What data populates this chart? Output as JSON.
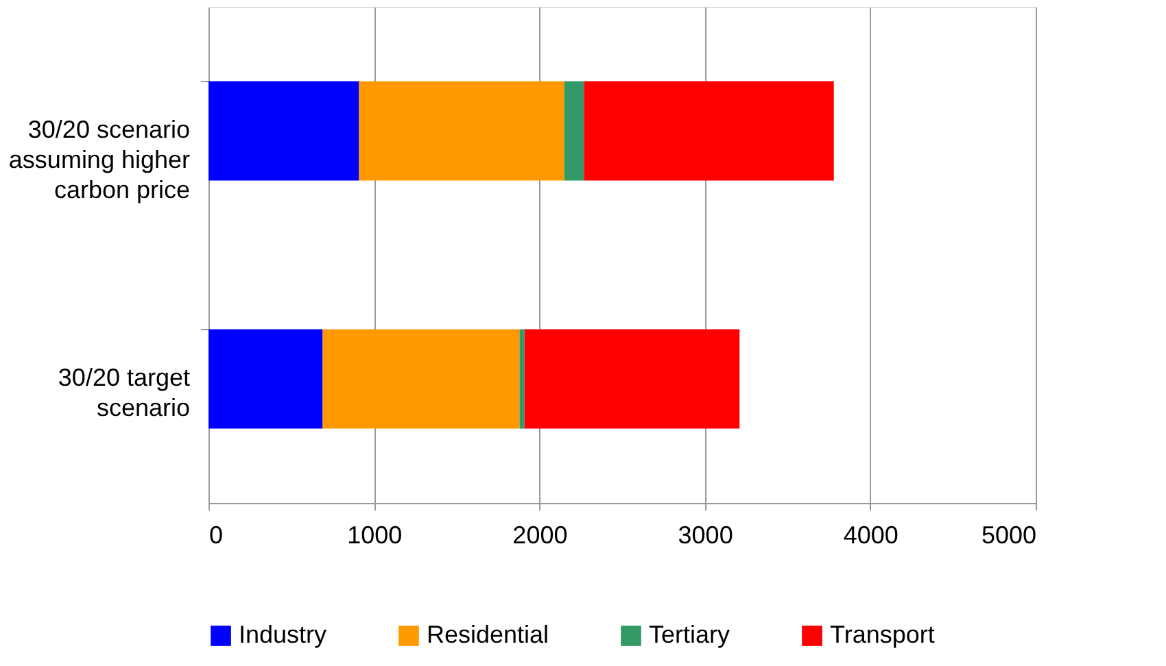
{
  "chart_data": {
    "type": "bar",
    "orientation": "horizontal",
    "stacked": true,
    "categories": [
      "30/20 scenario assuming higher carbon price",
      "30/20 target scenario"
    ],
    "series": [
      {
        "name": "Industry",
        "color": "#0000ff",
        "values": [
          910,
          690
        ]
      },
      {
        "name": "Residential",
        "color": "#ff9900",
        "values": [
          1240,
          1190
        ]
      },
      {
        "name": "Tertiary",
        "color": "#339966",
        "values": [
          120,
          30
        ]
      },
      {
        "name": "Transport",
        "color": "#ff0000",
        "values": [
          1510,
          1300
        ]
      }
    ],
    "xlim": [
      0,
      5000
    ],
    "xticks": [
      0,
      1000,
      2000,
      3000,
      4000,
      5000
    ],
    "grid": "x",
    "legend": "bottom"
  }
}
